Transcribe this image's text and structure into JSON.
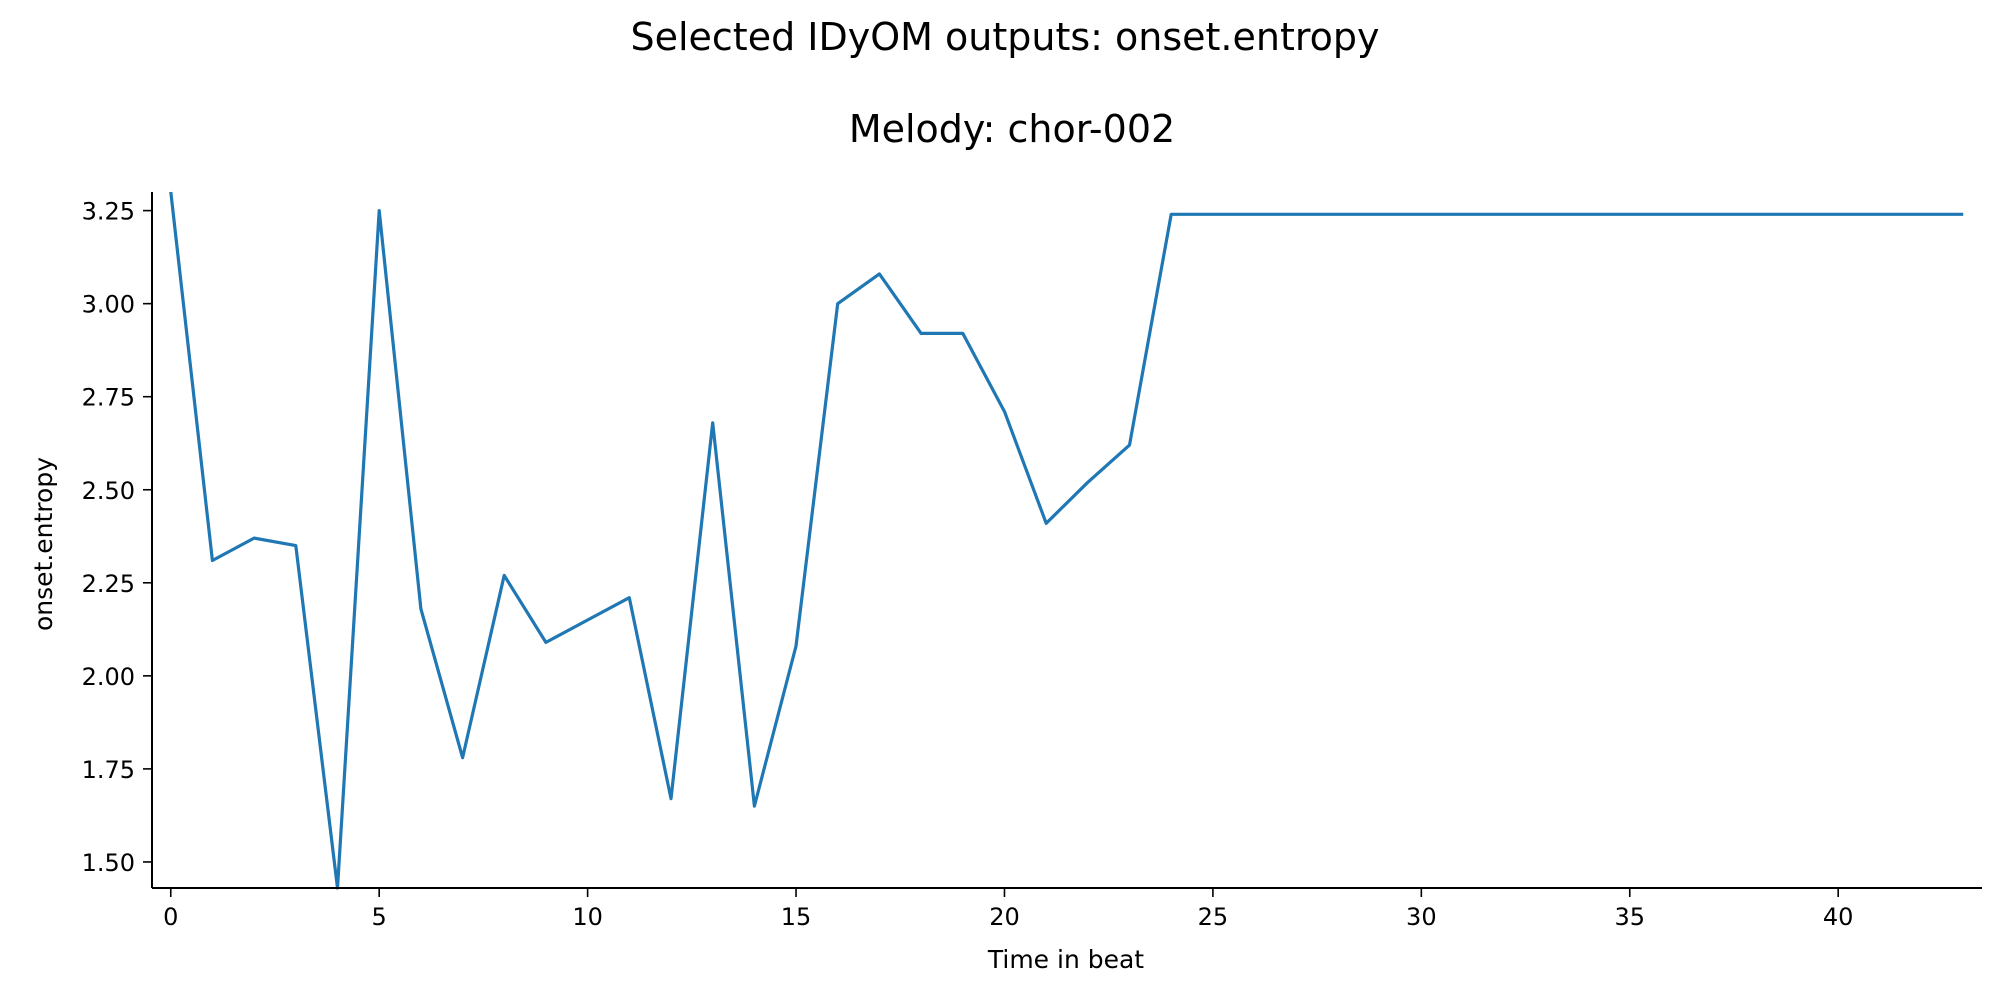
{
  "figure": {
    "title": "Selected IDyOM outputs: onset.entropy",
    "subtitle": "Melody: chor-002"
  },
  "chart_data": {
    "type": "line",
    "title": "Selected IDyOM outputs: onset.entropy",
    "subtitle": "Melody: chor-002",
    "xlabel": "Time in beat",
    "ylabel": "onset.entropy",
    "xlim": [
      -0.45,
      43.45
    ],
    "ylim": [
      1.43,
      3.3
    ],
    "xticks": [
      0,
      5,
      10,
      15,
      20,
      25,
      30,
      35,
      40
    ],
    "yticks": [
      1.5,
      1.75,
      2.0,
      2.25,
      2.5,
      2.75,
      3.0,
      3.25
    ],
    "grid": false,
    "line_color": "#1f77b4",
    "series": [
      {
        "x": [
          0,
          1,
          2,
          3,
          4,
          5,
          6,
          7,
          8,
          9,
          10,
          11,
          12,
          13,
          14,
          15,
          16,
          17,
          18,
          19,
          20,
          21,
          22,
          23,
          24,
          25,
          26,
          27,
          28,
          29,
          30,
          31,
          32,
          33,
          34,
          35,
          36,
          37,
          38,
          39,
          40,
          41,
          42,
          43
        ],
        "values": [
          3.3,
          2.31,
          2.37,
          2.35,
          1.43,
          3.25,
          2.18,
          1.78,
          2.27,
          2.09,
          2.15,
          2.21,
          1.67,
          2.68,
          1.65,
          2.08,
          3.0,
          3.08,
          2.92,
          2.92,
          2.71,
          2.41,
          2.52,
          2.62,
          3.24,
          3.24,
          3.24,
          3.24,
          3.24,
          3.24,
          3.24,
          3.24,
          3.24,
          3.24,
          3.24,
          3.24,
          3.24,
          3.24,
          3.24,
          3.24,
          3.24,
          3.24,
          3.24,
          3.24
        ]
      }
    ]
  }
}
